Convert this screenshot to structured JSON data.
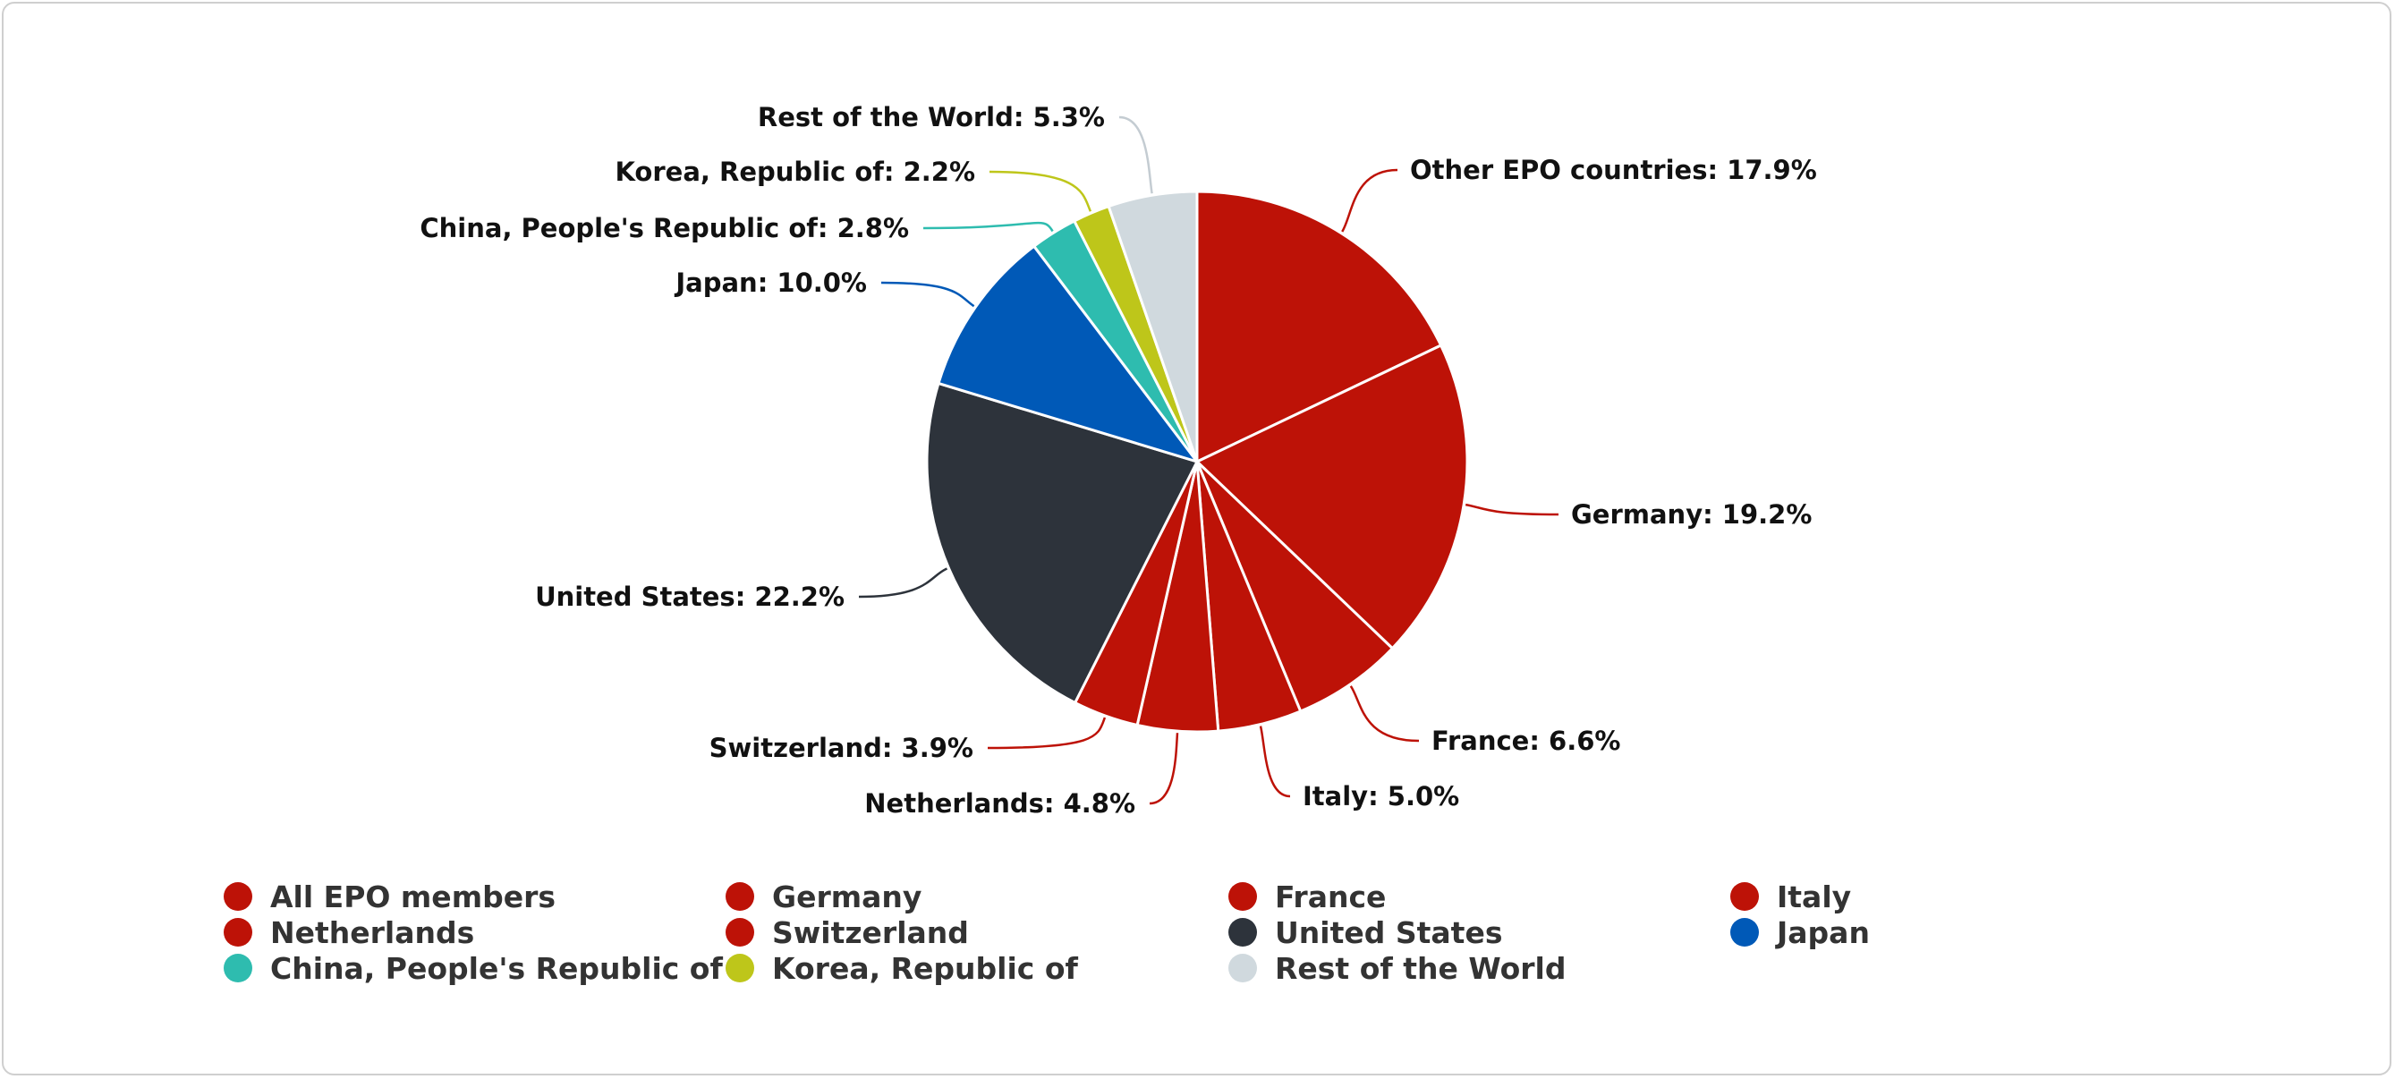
{
  "chart_data": {
    "type": "pie",
    "slices": [
      {
        "label": "Other EPO countries",
        "value": 17.9,
        "display": "Other EPO countries: 17.9%",
        "color": "#bd1207"
      },
      {
        "label": "Germany",
        "value": 19.2,
        "display": "Germany: 19.2%",
        "color": "#bd1207"
      },
      {
        "label": "France",
        "value": 6.6,
        "display": "France: 6.6%",
        "color": "#bd1207"
      },
      {
        "label": "Italy",
        "value": 5.0,
        "display": "Italy: 5.0%",
        "color": "#bd1207"
      },
      {
        "label": "Netherlands",
        "value": 4.8,
        "display": "Netherlands: 4.8%",
        "color": "#bd1207"
      },
      {
        "label": "Switzerland",
        "value": 3.9,
        "display": "Switzerland: 3.9%",
        "color": "#bd1207"
      },
      {
        "label": "United States",
        "value": 22.2,
        "display": "United States: 22.2%",
        "color": "#2d333b"
      },
      {
        "label": "Japan",
        "value": 10.0,
        "display": "Japan: 10.0%",
        "color": "#0059b7"
      },
      {
        "label": "China, People's Republic of",
        "value": 2.8,
        "display": "China, People's Republic of: 2.8%",
        "color": "#2ebcaf"
      },
      {
        "label": "Korea, Republic of",
        "value": 2.2,
        "display": "Korea, Republic of: 2.2%",
        "color": "#bec61a"
      },
      {
        "label": "Rest of the World",
        "value": 5.3,
        "display": "Rest of the World: 5.3%",
        "color": "#d0d9de"
      }
    ],
    "legend": {
      "placement": "bottom",
      "items": [
        {
          "label": "All EPO members",
          "color": "#bd1207"
        },
        {
          "label": "Germany",
          "color": "#bd1207"
        },
        {
          "label": "France",
          "color": "#bd1207"
        },
        {
          "label": "Italy",
          "color": "#bd1207"
        },
        {
          "label": "Netherlands",
          "color": "#bd1207"
        },
        {
          "label": "Switzerland",
          "color": "#bd1207"
        },
        {
          "label": "United States",
          "color": "#2d333b"
        },
        {
          "label": "Japan",
          "color": "#0059b7"
        },
        {
          "label": "China, People's Republic of",
          "color": "#2ebcaf"
        },
        {
          "label": "Korea, Republic of",
          "color": "#bec61a"
        },
        {
          "label": "Rest of the World",
          "color": "#d0d9de"
        }
      ]
    }
  }
}
